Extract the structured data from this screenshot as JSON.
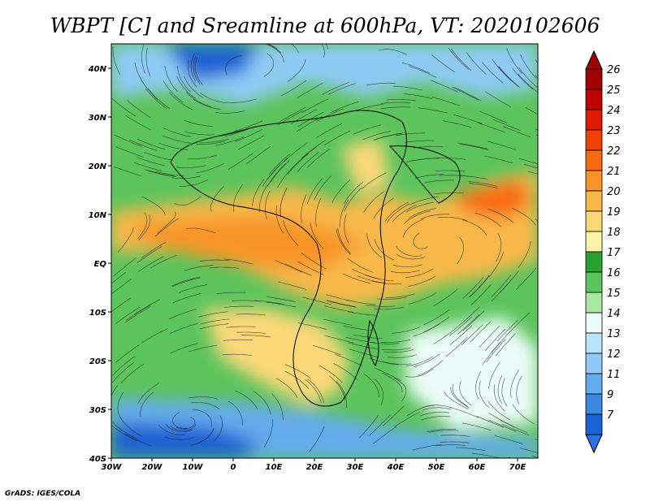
{
  "title": "WBPT [C] and Sreamline at 600hPa, VT: 2020102606",
  "credit": "GrADS: IGES/COLA",
  "map": {
    "lon_range": [
      -30,
      75
    ],
    "lat_range": [
      -40,
      45
    ],
    "lon_ticks": [
      {
        "value": -30,
        "label": "30W"
      },
      {
        "value": -20,
        "label": "20W"
      },
      {
        "value": -10,
        "label": "10W"
      },
      {
        "value": 0,
        "label": "0"
      },
      {
        "value": 10,
        "label": "10E"
      },
      {
        "value": 20,
        "label": "20E"
      },
      {
        "value": 30,
        "label": "30E"
      },
      {
        "value": 40,
        "label": "40E"
      },
      {
        "value": 50,
        "label": "50E"
      },
      {
        "value": 60,
        "label": "60E"
      },
      {
        "value": 70,
        "label": "70E"
      }
    ],
    "lat_ticks": [
      {
        "value": 40,
        "label": "40N"
      },
      {
        "value": 30,
        "label": "30N"
      },
      {
        "value": 20,
        "label": "20N"
      },
      {
        "value": 10,
        "label": "10N"
      },
      {
        "value": 0,
        "label": "EQ"
      },
      {
        "value": -10,
        "label": "10S"
      },
      {
        "value": -20,
        "label": "20S"
      },
      {
        "value": -30,
        "label": "30S"
      },
      {
        "value": -40,
        "label": "40S"
      }
    ]
  },
  "colorbar": {
    "levels": [
      {
        "label": "26",
        "color": "#a00000"
      },
      {
        "label": "25",
        "color": "#c00000"
      },
      {
        "label": "24",
        "color": "#e01a00"
      },
      {
        "label": "23",
        "color": "#f24000"
      },
      {
        "label": "22",
        "color": "#f86a10"
      },
      {
        "label": "21",
        "color": "#f89428"
      },
      {
        "label": "20",
        "color": "#f8b848"
      },
      {
        "label": "19",
        "color": "#fad878"
      },
      {
        "label": "18",
        "color": "#fcf2a8"
      },
      {
        "label": "17",
        "color": "#2ca02c"
      },
      {
        "label": "16",
        "color": "#5cc45c"
      },
      {
        "label": "15",
        "color": "#a8e8a0"
      },
      {
        "label": "14",
        "color": "#ecfcf8"
      },
      {
        "label": "13",
        "color": "#b8e4fa"
      },
      {
        "label": "12",
        "color": "#8ecaf4"
      },
      {
        "label": "11",
        "color": "#64acec"
      },
      {
        "label": "9",
        "color": "#3c88e0"
      },
      {
        "label": "7",
        "color": "#1c62d4"
      }
    ],
    "bottom_arrow_color": "#2a70e0"
  }
}
